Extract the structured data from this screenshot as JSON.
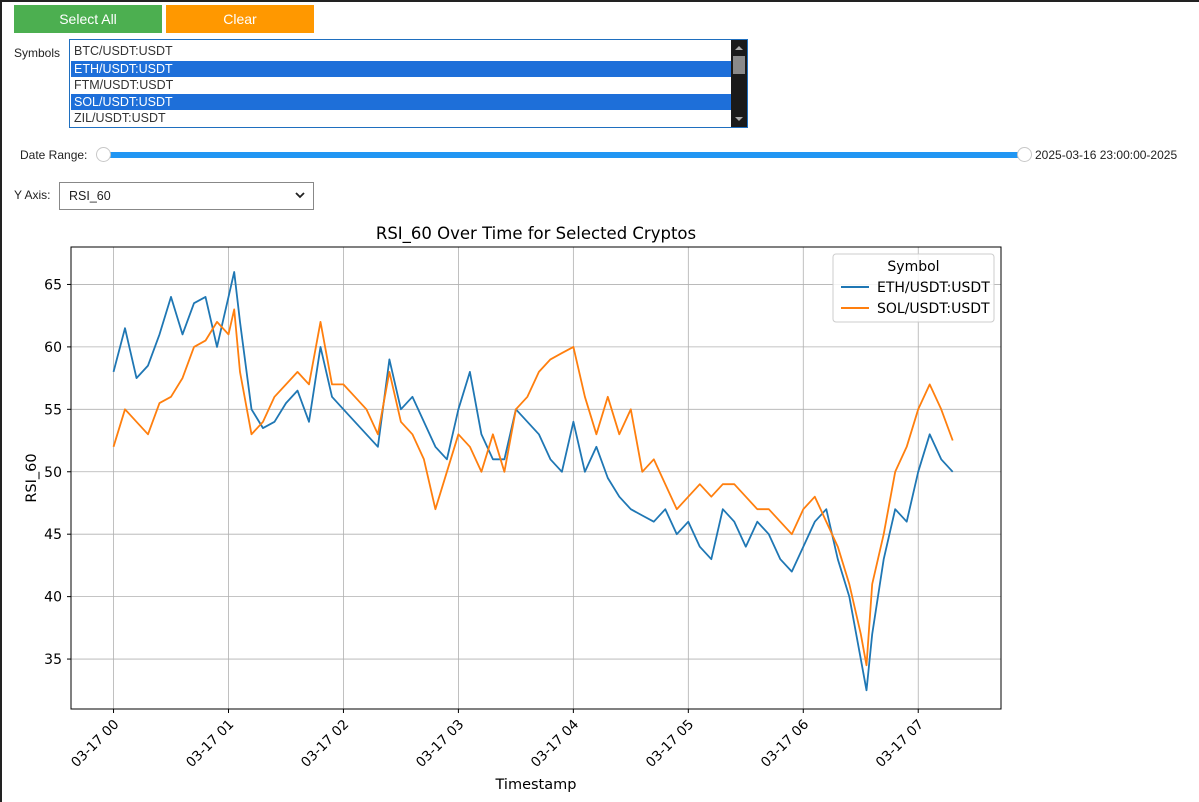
{
  "buttons": {
    "select_all": "Select All",
    "clear": "Clear"
  },
  "symbols": {
    "label": "Symbols",
    "options": [
      {
        "label": "BTC/USDT:USDT",
        "selected": false
      },
      {
        "label": "ETH/USDT:USDT",
        "selected": true
      },
      {
        "label": "FTM/USDT:USDT",
        "selected": false
      },
      {
        "label": "SOL/USDT:USDT",
        "selected": true
      },
      {
        "label": "ZIL/USDT:USDT",
        "selected": false
      }
    ]
  },
  "date_range": {
    "label": "Date Range:",
    "value_text": "2025-03-16 23:00:00-2025",
    "low": 0.0,
    "high": 1.0
  },
  "y_axis": {
    "label": "Y Axis:",
    "value": "RSI_60"
  },
  "colors": {
    "select_all": "#4caf50",
    "clear": "#ff9800",
    "selection": "#1e6fd9",
    "slider": "#2196f3"
  },
  "chart_data": {
    "type": "line",
    "title": "RSI_60 Over Time for Selected Cryptos",
    "xlabel": "Timestamp",
    "ylabel": "RSI_60",
    "xlim": [
      -0.37,
      7.72
    ],
    "ylim": [
      31,
      68
    ],
    "xticks": [
      0,
      1,
      2,
      3,
      4,
      5,
      6,
      7
    ],
    "xtick_labels": [
      "03-17 00",
      "03-17 01",
      "03-17 02",
      "03-17 03",
      "03-17 04",
      "03-17 05",
      "03-17 06",
      "03-17 07"
    ],
    "yticks": [
      35,
      40,
      45,
      50,
      55,
      60,
      65
    ],
    "grid": true,
    "legend": {
      "title": "Symbol",
      "placement": "top-right"
    },
    "series": [
      {
        "name": "ETH/USDT:USDT",
        "color": "#1f77b4",
        "x": [
          0,
          0.1,
          0.2,
          0.3,
          0.4,
          0.5,
          0.6,
          0.7,
          0.8,
          0.9,
          1.0,
          1.05,
          1.1,
          1.2,
          1.3,
          1.4,
          1.5,
          1.6,
          1.7,
          1.8,
          1.9,
          2.0,
          2.1,
          2.2,
          2.3,
          2.4,
          2.5,
          2.6,
          2.7,
          2.8,
          2.9,
          3.0,
          3.1,
          3.2,
          3.3,
          3.4,
          3.5,
          3.6,
          3.7,
          3.8,
          3.9,
          4.0,
          4.1,
          4.2,
          4.3,
          4.4,
          4.5,
          4.6,
          4.7,
          4.8,
          4.9,
          5.0,
          5.1,
          5.2,
          5.3,
          5.4,
          5.5,
          5.6,
          5.7,
          5.8,
          5.9,
          6.0,
          6.1,
          6.2,
          6.3,
          6.4,
          6.5,
          6.55,
          6.6,
          6.7,
          6.8,
          6.9,
          7.0,
          7.1,
          7.2,
          7.3
        ],
        "y": [
          58,
          61.5,
          57.5,
          58.5,
          61,
          64,
          61,
          63.5,
          64,
          60,
          64,
          66,
          62,
          55,
          53.5,
          54,
          55.5,
          56.5,
          54,
          60,
          56,
          55,
          54,
          53,
          52,
          59,
          55,
          56,
          54,
          52,
          51,
          55,
          58,
          53,
          51,
          51,
          55,
          54,
          53,
          51,
          50,
          54,
          50,
          52,
          49.5,
          48,
          47,
          46.5,
          46,
          47,
          45,
          46,
          44,
          43,
          47,
          46,
          44,
          46,
          45,
          43,
          42,
          44,
          46,
          47,
          43,
          40,
          35,
          32.5,
          37,
          43,
          47,
          46,
          50,
          53,
          51,
          50
        ]
      },
      {
        "name": "SOL/USDT:USDT",
        "color": "#ff7f0e",
        "x": [
          0,
          0.1,
          0.2,
          0.3,
          0.4,
          0.5,
          0.6,
          0.7,
          0.8,
          0.9,
          1.0,
          1.05,
          1.1,
          1.2,
          1.3,
          1.4,
          1.5,
          1.6,
          1.7,
          1.8,
          1.9,
          2.0,
          2.1,
          2.2,
          2.3,
          2.4,
          2.5,
          2.6,
          2.7,
          2.8,
          2.9,
          3.0,
          3.1,
          3.2,
          3.3,
          3.4,
          3.5,
          3.6,
          3.7,
          3.8,
          3.9,
          4.0,
          4.1,
          4.2,
          4.3,
          4.4,
          4.5,
          4.6,
          4.7,
          4.8,
          4.9,
          5.0,
          5.1,
          5.2,
          5.3,
          5.4,
          5.5,
          5.6,
          5.7,
          5.8,
          5.9,
          6.0,
          6.1,
          6.2,
          6.3,
          6.4,
          6.5,
          6.55,
          6.6,
          6.7,
          6.8,
          6.9,
          7.0,
          7.1,
          7.2,
          7.3
        ],
        "y": [
          52,
          55,
          54,
          53,
          55.5,
          56,
          57.5,
          60,
          60.5,
          62,
          61,
          63,
          58,
          53,
          54,
          56,
          57,
          58,
          57,
          62,
          57,
          57,
          56,
          55,
          53,
          58,
          54,
          53,
          51,
          47,
          50,
          53,
          52,
          50,
          53,
          50,
          55,
          56,
          58,
          59,
          59.5,
          60,
          56,
          53,
          56,
          53,
          55,
          50,
          51,
          49,
          47,
          48,
          49,
          48,
          49,
          49,
          48,
          47,
          47,
          46,
          45,
          47,
          48,
          46,
          44,
          41,
          37,
          34.5,
          41,
          45,
          50,
          52,
          55,
          57,
          55,
          52.5
        ]
      }
    ]
  }
}
